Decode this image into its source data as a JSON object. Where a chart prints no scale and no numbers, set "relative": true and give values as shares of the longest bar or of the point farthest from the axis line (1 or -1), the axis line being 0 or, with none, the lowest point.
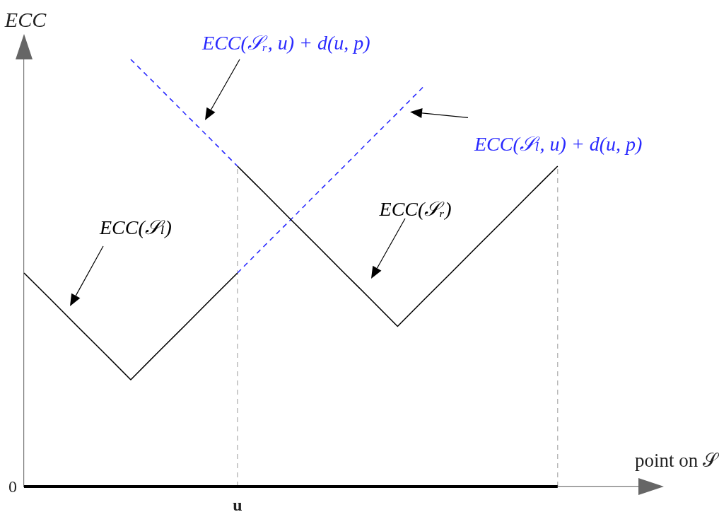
{
  "chart_data": {
    "type": "line",
    "xlabel": "point on 𝒮",
    "ylabel": "ECC",
    "relative": true,
    "marker": "none",
    "categories": [
      null,
      null,
      null,
      null,
      null,
      null,
      null,
      null,
      null,
      null,
      null,
      null,
      null,
      null,
      null,
      null,
      null,
      null,
      null,
      null,
      null,
      null,
      null,
      null
    ],
    "series": [
      {
        "name": "ECC(𝒮ₗ)",
        "color": "#000000",
        "values": [
          0.5,
          0.438,
          0.375,
          0.313,
          0.25,
          0.313,
          0.375,
          0.438,
          0.5,
          null,
          null,
          null,
          null,
          null,
          null,
          null,
          null,
          null,
          null,
          null,
          null,
          null,
          null,
          null
        ]
      },
      {
        "name": "ECC(𝒮ᵣ)",
        "color": "#000000",
        "values": [
          null,
          null,
          null,
          null,
          null,
          null,
          null,
          null,
          0.75,
          0.688,
          0.625,
          0.563,
          0.5,
          0.438,
          0.375,
          0.438,
          0.5,
          0.563,
          0.625,
          0.688,
          0.75,
          null,
          null,
          null
        ]
      },
      {
        "name": "ECC(𝒮ᵣ, u) + d(u, p)",
        "color": "#2a2aff",
        "line_style": "dashed",
        "values": [
          null,
          null,
          null,
          null,
          1,
          0.938,
          0.875,
          0.813,
          0.75,
          null,
          null,
          null,
          null,
          null,
          null,
          null,
          null,
          null,
          null,
          null,
          null,
          null,
          null,
          null
        ]
      },
      {
        "name": "ECC(𝒮ₗ, u) + d(u, p)",
        "color": "#2a2aff",
        "line_style": "dashed",
        "values": [
          null,
          null,
          null,
          null,
          null,
          null,
          null,
          null,
          0.5,
          0.563,
          0.625,
          0.688,
          0.75,
          0.813,
          0.875,
          0.938,
          null,
          null,
          null,
          null,
          null,
          null,
          null,
          null
        ]
      },
      {
        "color": "#000000",
        "values": [
          0,
          0,
          0,
          0,
          0,
          0,
          0,
          0,
          0,
          0,
          0,
          0,
          0,
          0,
          0,
          0,
          0,
          0,
          0,
          0,
          0,
          null,
          null,
          null
        ]
      }
    ],
    "annotations": [
      "0",
      "u"
    ]
  }
}
